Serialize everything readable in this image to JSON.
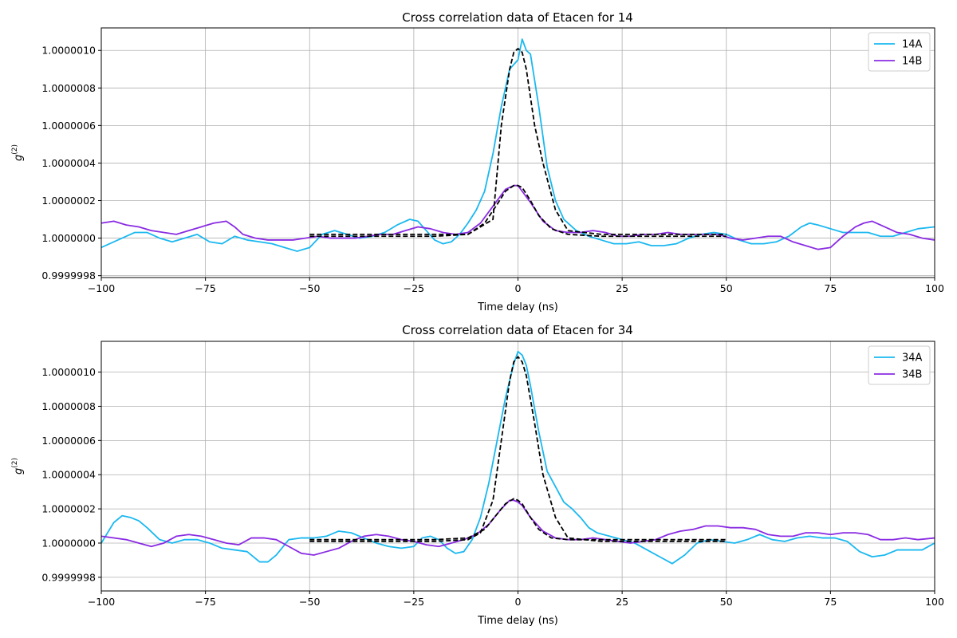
{
  "colors": {
    "A": "#1ab8f0",
    "B": "#8a2be2",
    "fit": "#000000",
    "grid": "#b0b0b0"
  },
  "chart_data": [
    {
      "type": "line",
      "title": "Cross correlation data of Etacen for 14",
      "xlabel": "Time delay (ns)",
      "ylabel": "g",
      "ylabel_sup": "(2)",
      "xlim": [
        -100,
        100
      ],
      "ylim": [
        0.99999979,
        1.00000112
      ],
      "xticks": [
        -100,
        -75,
        -50,
        -25,
        0,
        25,
        50,
        75,
        100
      ],
      "xtick_labels": [
        "−100",
        "−75",
        "−50",
        "−25",
        "0",
        "25",
        "50",
        "75",
        "100"
      ],
      "yticks": [
        0.9999998,
        1.0,
        1.0000002,
        1.0000004,
        1.0000006,
        1.0000008,
        1.000001
      ],
      "ytick_labels": [
        "0.9999998",
        "1.0000000",
        "1.0000002",
        "1.0000004",
        "1.0000006",
        "1.0000008",
        "1.0000010"
      ],
      "grid": true,
      "legend": "top-right",
      "series": [
        {
          "name": "14A",
          "color_key": "A",
          "x": [
            -100,
            -95,
            -92,
            -89,
            -86,
            -83,
            -80,
            -77,
            -74,
            -71,
            -68,
            -65,
            -62,
            -59,
            -56,
            -53,
            -50,
            -47,
            -44,
            -41,
            -38,
            -35,
            -32,
            -29,
            -26,
            -24,
            -22,
            -20,
            -18,
            -16,
            -14,
            -12,
            -10,
            -8,
            -6,
            -4,
            -2,
            0,
            1,
            2,
            3,
            5,
            7,
            9,
            11,
            14,
            17,
            20,
            23,
            26,
            29,
            32,
            35,
            38,
            41,
            44,
            47,
            50,
            53,
            56,
            59,
            62,
            65,
            68,
            70,
            72,
            75,
            78,
            81,
            84,
            87,
            90,
            93,
            96,
            100
          ],
          "y": [
            0.99999995,
            1.0,
            1.00000003,
            1.00000003,
            1.0,
            0.99999998,
            1.0,
            1.00000002,
            0.99999998,
            0.99999997,
            1.00000001,
            0.99999999,
            0.99999998,
            0.99999997,
            0.99999995,
            0.99999993,
            0.99999995,
            1.00000002,
            1.00000004,
            1.00000002,
            1.0,
            1.00000001,
            1.00000003,
            1.00000007,
            1.0000001,
            1.00000009,
            1.00000004,
            0.99999999,
            0.99999997,
            0.99999998,
            1.00000002,
            1.00000008,
            1.00000015,
            1.00000025,
            1.00000045,
            1.0000007,
            1.0000009,
            1.00000095,
            1.00000106,
            1.000001,
            1.00000098,
            1.0000007,
            1.00000038,
            1.0000002,
            1.0000001,
            1.00000004,
            1.00000001,
            0.99999999,
            0.99999997,
            0.99999997,
            0.99999998,
            0.99999996,
            0.99999996,
            0.99999997,
            1.0,
            1.00000002,
            1.00000003,
            1.00000002,
            0.99999999,
            0.99999997,
            0.99999997,
            0.99999998,
            1.00000001,
            1.00000006,
            1.00000008,
            1.00000007,
            1.00000005,
            1.00000003,
            1.00000003,
            1.00000003,
            1.00000001,
            1.00000001,
            1.00000003,
            1.00000005,
            1.00000006
          ]
        },
        {
          "name": "14B",
          "color_key": "B",
          "x": [
            -100,
            -97,
            -94,
            -91,
            -88,
            -85,
            -82,
            -79,
            -76,
            -73,
            -70,
            -68,
            -66,
            -63,
            -60,
            -57,
            -54,
            -51,
            -48,
            -45,
            -42,
            -39,
            -36,
            -33,
            -30,
            -27,
            -24,
            -21,
            -18,
            -15,
            -12,
            -9,
            -6,
            -3,
            -1,
            0,
            1,
            3,
            6,
            9,
            12,
            15,
            18,
            21,
            24,
            27,
            30,
            33,
            36,
            39,
            42,
            45,
            48,
            51,
            54,
            57,
            60,
            63,
            66,
            69,
            72,
            75,
            78,
            81,
            83,
            85,
            88,
            91,
            94,
            97,
            100
          ],
          "y": [
            1.00000008,
            1.00000009,
            1.00000007,
            1.00000006,
            1.00000004,
            1.00000003,
            1.00000002,
            1.00000004,
            1.00000006,
            1.00000008,
            1.00000009,
            1.00000006,
            1.00000002,
            1.0,
            0.99999999,
            0.99999999,
            0.99999999,
            1.0,
            1.00000001,
            1.0,
            1.0,
            1.0,
            1.00000001,
            1.00000002,
            1.00000002,
            1.00000004,
            1.00000006,
            1.00000005,
            1.00000003,
            1.00000002,
            1.00000003,
            1.00000008,
            1.00000017,
            1.00000026,
            1.00000028,
            1.00000028,
            1.00000025,
            1.00000019,
            1.00000009,
            1.00000004,
            1.00000003,
            1.00000003,
            1.00000004,
            1.00000003,
            1.00000001,
            1.00000001,
            1.00000002,
            1.00000002,
            1.00000003,
            1.00000002,
            1.00000002,
            1.00000002,
            1.00000002,
            1.0,
            0.99999999,
            1.0,
            1.00000001,
            1.00000001,
            0.99999998,
            0.99999996,
            0.99999994,
            0.99999995,
            1.00000001,
            1.00000006,
            1.00000008,
            1.00000009,
            1.00000006,
            1.00000003,
            1.00000002,
            1.0,
            0.99999999
          ]
        }
      ],
      "fits": [
        {
          "x": [
            -50,
            -20,
            -12,
            -9,
            -6,
            -4,
            -2,
            -1,
            0,
            1,
            2,
            4,
            6,
            9,
            12,
            20,
            50
          ],
          "y": [
            1.00000002,
            1.00000002,
            1.00000002,
            1.00000006,
            1.0000001,
            1.0000006,
            1.0000009,
            1.00000099,
            1.00000101,
            1.00000099,
            1.0000009,
            1.0000006,
            1.0000004,
            1.00000015,
            1.00000004,
            1.00000002,
            1.00000002
          ]
        },
        {
          "x": [
            -50,
            -20,
            -12,
            -8,
            -5,
            -3,
            -1,
            0,
            1,
            3,
            5,
            8,
            12,
            20,
            50
          ],
          "y": [
            1.00000001,
            1.00000001,
            1.00000002,
            1.00000008,
            1.00000018,
            1.00000025,
            1.00000028,
            1.00000028,
            1.00000027,
            1.0000002,
            1.00000012,
            1.00000005,
            1.00000002,
            1.00000001,
            1.00000001
          ]
        }
      ]
    },
    {
      "type": "line",
      "title": "Cross correlation data of Etacen for 34",
      "xlabel": "Time delay (ns)",
      "ylabel": "g",
      "ylabel_sup": "(2)",
      "xlim": [
        -100,
        100
      ],
      "ylim": [
        0.99999972,
        1.00000118
      ],
      "xticks": [
        -100,
        -75,
        -50,
        -25,
        0,
        25,
        50,
        75,
        100
      ],
      "xtick_labels": [
        "−100",
        "−75",
        "−50",
        "−25",
        "0",
        "25",
        "50",
        "75",
        "100"
      ],
      "yticks": [
        0.9999998,
        1.0,
        1.0000002,
        1.0000004,
        1.0000006,
        1.0000008,
        1.000001
      ],
      "ytick_labels": [
        "0.9999998",
        "1.0000000",
        "1.0000002",
        "1.0000004",
        "1.0000006",
        "1.0000008",
        "1.0000010"
      ],
      "grid": true,
      "legend": "top-right",
      "series": [
        {
          "name": "34A",
          "color_key": "A",
          "x": [
            -100,
            -97,
            -95,
            -93,
            -91,
            -89,
            -86,
            -83,
            -80,
            -77,
            -74,
            -71,
            -68,
            -65,
            -62,
            -60,
            -58,
            -55,
            -52,
            -49,
            -46,
            -43,
            -40,
            -37,
            -34,
            -31,
            -28,
            -25,
            -23,
            -21,
            -19,
            -17,
            -15,
            -13,
            -11,
            -9,
            -7,
            -5,
            -3,
            -1,
            0,
            1,
            2,
            3,
            5,
            7,
            9,
            11,
            13,
            15,
            17,
            19,
            22,
            25,
            28,
            31,
            34,
            37,
            40,
            43,
            46,
            49,
            52,
            55,
            58,
            61,
            64,
            67,
            70,
            73,
            76,
            79,
            82,
            85,
            88,
            91,
            94,
            97,
            100
          ],
          "y": [
            1.0,
            1.00000012,
            1.00000016,
            1.00000015,
            1.00000013,
            1.00000009,
            1.00000002,
            1.0,
            1.00000002,
            1.00000002,
            1.0,
            0.99999997,
            0.99999996,
            0.99999995,
            0.99999989,
            0.99999989,
            0.99999993,
            1.00000002,
            1.00000003,
            1.00000003,
            1.00000004,
            1.00000007,
            1.00000006,
            1.00000003,
            1.0,
            0.99999998,
            0.99999997,
            0.99999998,
            1.00000003,
            1.00000004,
            1.00000002,
            0.99999997,
            0.99999994,
            0.99999995,
            1.00000002,
            1.00000015,
            1.00000035,
            1.0000006,
            1.00000085,
            1.00000105,
            1.00000112,
            1.0000011,
            1.00000104,
            1.00000092,
            1.00000065,
            1.00000042,
            1.00000033,
            1.00000024,
            1.0000002,
            1.00000015,
            1.00000009,
            1.00000006,
            1.00000004,
            1.00000002,
            1.0,
            0.99999996,
            0.99999992,
            0.99999988,
            0.99999993,
            1.0,
            1.00000002,
            1.00000001,
            1.0,
            1.00000002,
            1.00000005,
            1.00000002,
            1.00000001,
            1.00000003,
            1.00000004,
            1.00000003,
            1.00000003,
            1.00000001,
            0.99999995,
            0.99999992,
            0.99999993,
            0.99999996,
            0.99999996,
            0.99999996,
            1.0
          ]
        },
        {
          "name": "34B",
          "color_key": "B",
          "x": [
            -100,
            -97,
            -94,
            -91,
            -88,
            -85,
            -82,
            -79,
            -76,
            -73,
            -70,
            -67,
            -64,
            -61,
            -58,
            -55,
            -52,
            -49,
            -46,
            -43,
            -40,
            -37,
            -34,
            -31,
            -28,
            -25,
            -22,
            -19,
            -16,
            -13,
            -10,
            -7,
            -4,
            -2,
            -1,
            0,
            1,
            3,
            6,
            9,
            12,
            15,
            18,
            21,
            24,
            27,
            30,
            33,
            36,
            39,
            42,
            45,
            48,
            51,
            54,
            57,
            60,
            63,
            66,
            69,
            72,
            75,
            78,
            81,
            84,
            87,
            90,
            93,
            96,
            100
          ],
          "y": [
            1.00000004,
            1.00000003,
            1.00000002,
            1.0,
            0.99999998,
            1.0,
            1.00000004,
            1.00000005,
            1.00000004,
            1.00000002,
            1.0,
            0.99999999,
            1.00000003,
            1.00000003,
            1.00000002,
            0.99999998,
            0.99999994,
            0.99999993,
            0.99999995,
            0.99999997,
            1.00000001,
            1.00000004,
            1.00000005,
            1.00000004,
            1.00000002,
            1.00000001,
            0.99999999,
            0.99999998,
            1.0,
            1.00000002,
            1.00000005,
            1.00000011,
            1.0000002,
            1.00000025,
            1.00000025,
            1.00000024,
            1.00000022,
            1.00000015,
            1.00000007,
            1.00000003,
            1.00000002,
            1.00000002,
            1.00000003,
            1.00000002,
            1.00000001,
            1.0,
            1.00000001,
            1.00000002,
            1.00000005,
            1.00000007,
            1.00000008,
            1.0000001,
            1.0000001,
            1.00000009,
            1.00000009,
            1.00000008,
            1.00000005,
            1.00000004,
            1.00000004,
            1.00000006,
            1.00000006,
            1.00000005,
            1.00000006,
            1.00000006,
            1.00000005,
            1.00000002,
            1.00000002,
            1.00000003,
            1.00000002,
            1.00000003
          ]
        }
      ],
      "fits": [
        {
          "x": [
            -50,
            -20,
            -12,
            -9,
            -6,
            -4,
            -2,
            -1,
            0,
            1,
            2,
            4,
            6,
            9,
            12,
            20,
            50
          ],
          "y": [
            1.00000001,
            1.00000001,
            1.00000002,
            1.00000006,
            1.00000025,
            1.0000006,
            1.00000095,
            1.00000106,
            1.00000109,
            1.00000106,
            1.00000098,
            1.0000007,
            1.0000004,
            1.00000015,
            1.00000003,
            1.00000001,
            1.00000001
          ]
        },
        {
          "x": [
            -50,
            -20,
            -12,
            -8,
            -5,
            -3,
            -1,
            0,
            1,
            3,
            5,
            8,
            12,
            20,
            50
          ],
          "y": [
            1.00000002,
            1.00000002,
            1.00000003,
            1.00000008,
            1.00000017,
            1.00000023,
            1.00000026,
            1.00000025,
            1.00000023,
            1.00000015,
            1.00000008,
            1.00000003,
            1.00000002,
            1.00000002,
            1.00000002
          ]
        }
      ]
    }
  ]
}
